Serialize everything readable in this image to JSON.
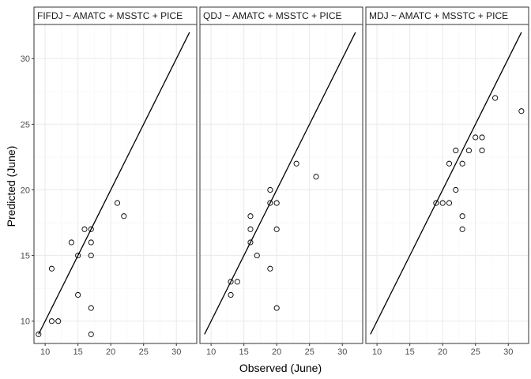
{
  "chart_data": {
    "type": "scatter",
    "xlabel": "Observed (June)",
    "ylabel": "Predicted (June)",
    "xlim": [
      8.3,
      33.1
    ],
    "ylim": [
      8.3,
      32.6
    ],
    "x_ticks": [
      10,
      15,
      20,
      25,
      30
    ],
    "y_ticks": [
      10,
      15,
      20,
      25,
      30
    ],
    "grid": true,
    "reference_line": {
      "from": [
        9,
        9
      ],
      "to": [
        32,
        32
      ]
    },
    "colors": {
      "panel_border": "#333333",
      "strip_fill": "#ffffff",
      "grid_major": "#ebebeb",
      "grid_minor": "#f5f5f5",
      "point_stroke": "#000000",
      "line": "#000000"
    },
    "panels": [
      {
        "title": "FIFDJ ~ AMATC + MSSTC + PICE",
        "points": [
          [
            9,
            9
          ],
          [
            11,
            10
          ],
          [
            11,
            14
          ],
          [
            12,
            10
          ],
          [
            14,
            16
          ],
          [
            15,
            12
          ],
          [
            15,
            15
          ],
          [
            16,
            17
          ],
          [
            17,
            17
          ],
          [
            17,
            16
          ],
          [
            17,
            15
          ],
          [
            17,
            11
          ],
          [
            17,
            9
          ],
          [
            21,
            19
          ],
          [
            22,
            18
          ]
        ]
      },
      {
        "title": "QDJ ~ AMATC + MSSTC + PICE",
        "points": [
          [
            13,
            13
          ],
          [
            13,
            12
          ],
          [
            14,
            13
          ],
          [
            16,
            18
          ],
          [
            16,
            17
          ],
          [
            16,
            16
          ],
          [
            17,
            15
          ],
          [
            19,
            20
          ],
          [
            19,
            19
          ],
          [
            19,
            14
          ],
          [
            20,
            19
          ],
          [
            20,
            17
          ],
          [
            20,
            11
          ],
          [
            23,
            22
          ],
          [
            26,
            21
          ]
        ]
      },
      {
        "title": "MDJ ~ AMATC + MSSTC + PICE",
        "points": [
          [
            19,
            19
          ],
          [
            20,
            19
          ],
          [
            21,
            19
          ],
          [
            21,
            22
          ],
          [
            22,
            23
          ],
          [
            22,
            20
          ],
          [
            23,
            22
          ],
          [
            23,
            18
          ],
          [
            23,
            17
          ],
          [
            24,
            23
          ],
          [
            25,
            24
          ],
          [
            26,
            24
          ],
          [
            26,
            23
          ],
          [
            28,
            27
          ],
          [
            32,
            26
          ]
        ]
      }
    ]
  }
}
